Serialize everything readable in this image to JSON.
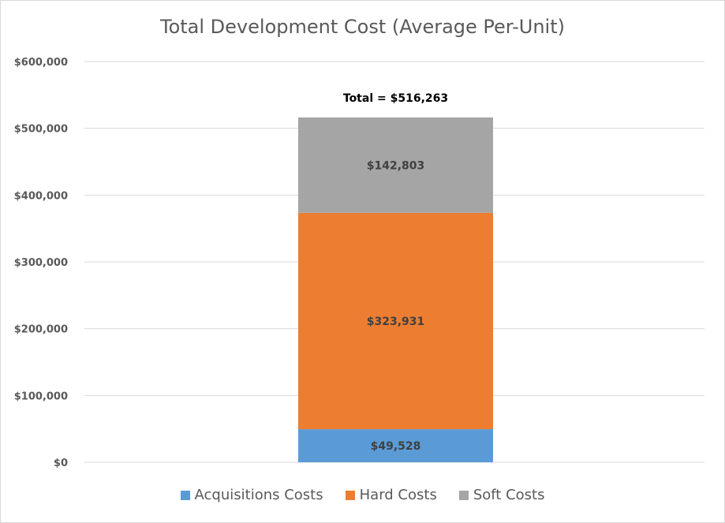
{
  "chart_data": {
    "type": "bar",
    "stacked": true,
    "title": "Total Development Cost (Average Per-Unit)",
    "categories": [
      ""
    ],
    "series": [
      {
        "name": "Acquisitions Costs",
        "values": [
          49528
        ],
        "color": "#5b9bd5",
        "label": "$49,528"
      },
      {
        "name": "Hard Costs",
        "values": [
          323931
        ],
        "color": "#ed7d31",
        "label": "$323,931"
      },
      {
        "name": "Soft Costs",
        "values": [
          142803
        ],
        "color": "#a5a5a5",
        "label": "$142,803"
      }
    ],
    "total_label": "Total = $516,263",
    "ylim": [
      0,
      600000
    ],
    "yticks": [
      {
        "value": 0,
        "label": "$0"
      },
      {
        "value": 100000,
        "label": "$100,000"
      },
      {
        "value": 200000,
        "label": "$200,000"
      },
      {
        "value": 300000,
        "label": "$300,000"
      },
      {
        "value": 400000,
        "label": "$400,000"
      },
      {
        "value": 500000,
        "label": "$500,000"
      },
      {
        "value": 600000,
        "label": "$600,000"
      }
    ],
    "grid": true,
    "legend_position": "bottom"
  }
}
